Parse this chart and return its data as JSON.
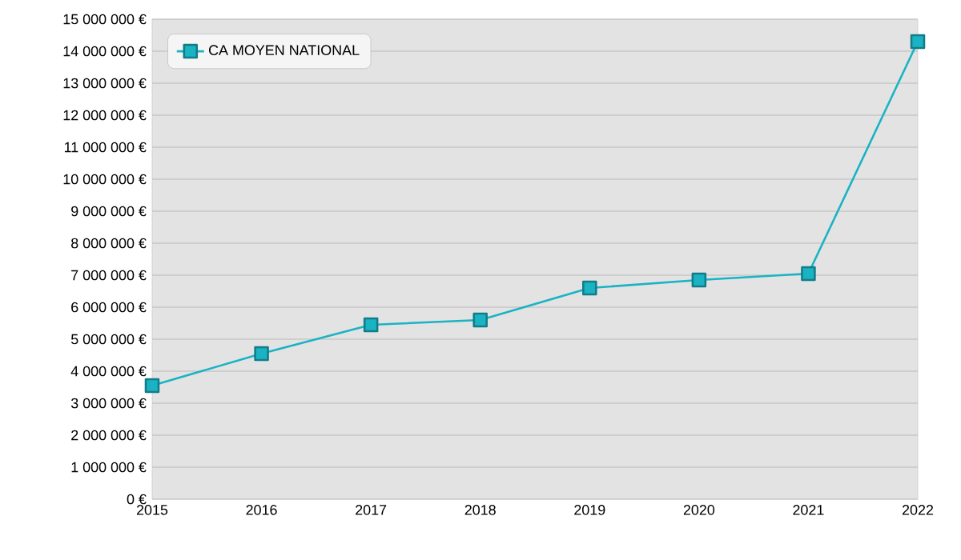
{
  "chart_data": {
    "type": "line",
    "x": [
      2015,
      2016,
      2017,
      2018,
      2019,
      2020,
      2021,
      2022
    ],
    "series": [
      {
        "name": "CA MOYEN NATIONAL",
        "color": "#1ab3c4",
        "values": [
          3550000,
          4550000,
          5450000,
          5600000,
          6600000,
          6850000,
          7050000,
          14300000
        ]
      }
    ],
    "xlim": [
      2015,
      2022
    ],
    "xticks": [
      2015,
      2016,
      2017,
      2018,
      2019,
      2020,
      2021,
      2022
    ],
    "ylim": [
      0,
      15000000
    ],
    "yticks": [
      {
        "value": 0,
        "label": "0 €"
      },
      {
        "value": 1000000,
        "label": "1 000 000 €"
      },
      {
        "value": 2000000,
        "label": "2 000 000 €"
      },
      {
        "value": 3000000,
        "label": "3 000 000 €"
      },
      {
        "value": 4000000,
        "label": "4 000 000 €"
      },
      {
        "value": 5000000,
        "label": "5 000 000 €"
      },
      {
        "value": 6000000,
        "label": "6 000 000 €"
      },
      {
        "value": 7000000,
        "label": "7 000 000 €"
      },
      {
        "value": 8000000,
        "label": "8 000 000 €"
      },
      {
        "value": 9000000,
        "label": "9 000 000 €"
      },
      {
        "value": 10000000,
        "label": "10 000 000 €"
      },
      {
        "value": 11000000,
        "label": "11 000 000 €"
      },
      {
        "value": 12000000,
        "label": "12 000 000 €"
      },
      {
        "value": 13000000,
        "label": "13 000 000 €"
      },
      {
        "value": 14000000,
        "label": "14 000 000 €"
      },
      {
        "value": 15000000,
        "label": "15 000 000 €"
      }
    ],
    "grid": "y",
    "legend": "top left",
    "marker": "square",
    "line_style": "solid"
  }
}
